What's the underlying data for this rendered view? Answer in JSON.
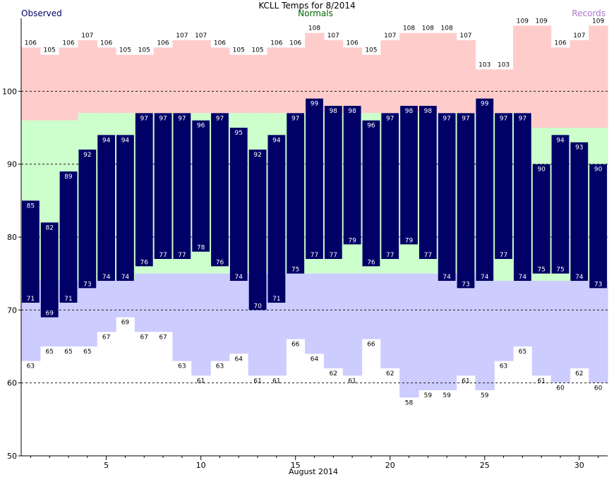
{
  "chart_data": {
    "type": "bar",
    "title": "KCLL Temps for 8/2014",
    "xlabel": "August 2014",
    "ylabel": "",
    "ylim": [
      50,
      110
    ],
    "xlim": [
      0.5,
      31.5
    ],
    "yticks": [
      50,
      60,
      70,
      80,
      90,
      100
    ],
    "xticks": [
      5,
      10,
      15,
      20,
      25,
      30
    ],
    "grid": "horizontal dashed at 60, 70, 80, 90, 100",
    "legend": [
      {
        "name": "Observed",
        "color": "#000066",
        "position": "top-left"
      },
      {
        "name": "Normals",
        "color": "#006600",
        "position": "top-center"
      },
      {
        "name": "Records",
        "color": "#aa77cc",
        "position": "top-right"
      }
    ],
    "colors": {
      "observed": "#000066",
      "normal_band": "#ccffcc",
      "record_high_band": "#ffcccc",
      "record_low_band": "#ccccff",
      "observed_label": "#ffffff",
      "record_label": "#000000"
    },
    "days": [
      1,
      2,
      3,
      4,
      5,
      6,
      7,
      8,
      9,
      10,
      11,
      12,
      13,
      14,
      15,
      16,
      17,
      18,
      19,
      20,
      21,
      22,
      23,
      24,
      25,
      26,
      27,
      28,
      29,
      30,
      31
    ],
    "series": [
      {
        "name": "Observed High",
        "values": [
          85,
          82,
          89,
          92,
          94,
          94,
          97,
          97,
          97,
          96,
          97,
          95,
          92,
          94,
          97,
          99,
          98,
          98,
          96,
          97,
          98,
          98,
          97,
          97,
          99,
          97,
          97,
          90,
          94,
          93,
          90
        ]
      },
      {
        "name": "Observed Low",
        "values": [
          71,
          69,
          71,
          73,
          74,
          74,
          76,
          77,
          77,
          78,
          76,
          74,
          70,
          71,
          75,
          77,
          77,
          79,
          76,
          77,
          79,
          77,
          74,
          73,
          74,
          77,
          74,
          75,
          75,
          74,
          73
        ]
      },
      {
        "name": "Normal High",
        "values": [
          96,
          96,
          96,
          97,
          97,
          97,
          97,
          97,
          97,
          97,
          97,
          97,
          97,
          97,
          97,
          97,
          97,
          97,
          97,
          97,
          97,
          97,
          97,
          97,
          97,
          97,
          97,
          95,
          95,
          95,
          95
        ]
      },
      {
        "name": "Normal Low",
        "values": [
          74,
          74,
          74,
          74,
          74,
          74,
          75,
          75,
          75,
          75,
          75,
          75,
          75,
          75,
          75,
          75,
          75,
          75,
          75,
          75,
          75,
          75,
          75,
          75,
          74,
          74,
          74,
          74,
          74,
          74,
          74
        ]
      },
      {
        "name": "Record High",
        "values": [
          106,
          105,
          106,
          107,
          106,
          105,
          105,
          106,
          107,
          107,
          106,
          105,
          105,
          106,
          106,
          108,
          107,
          106,
          105,
          107,
          108,
          108,
          108,
          107,
          103,
          103,
          109,
          109,
          106,
          107,
          109
        ]
      },
      {
        "name": "Record Low",
        "values": [
          63,
          65,
          65,
          65,
          67,
          69,
          67,
          67,
          63,
          61,
          63,
          64,
          61,
          61,
          66,
          64,
          62,
          61,
          66,
          62,
          58,
          59,
          59,
          61,
          59,
          63,
          65,
          61,
          60,
          62,
          60
        ]
      }
    ]
  }
}
